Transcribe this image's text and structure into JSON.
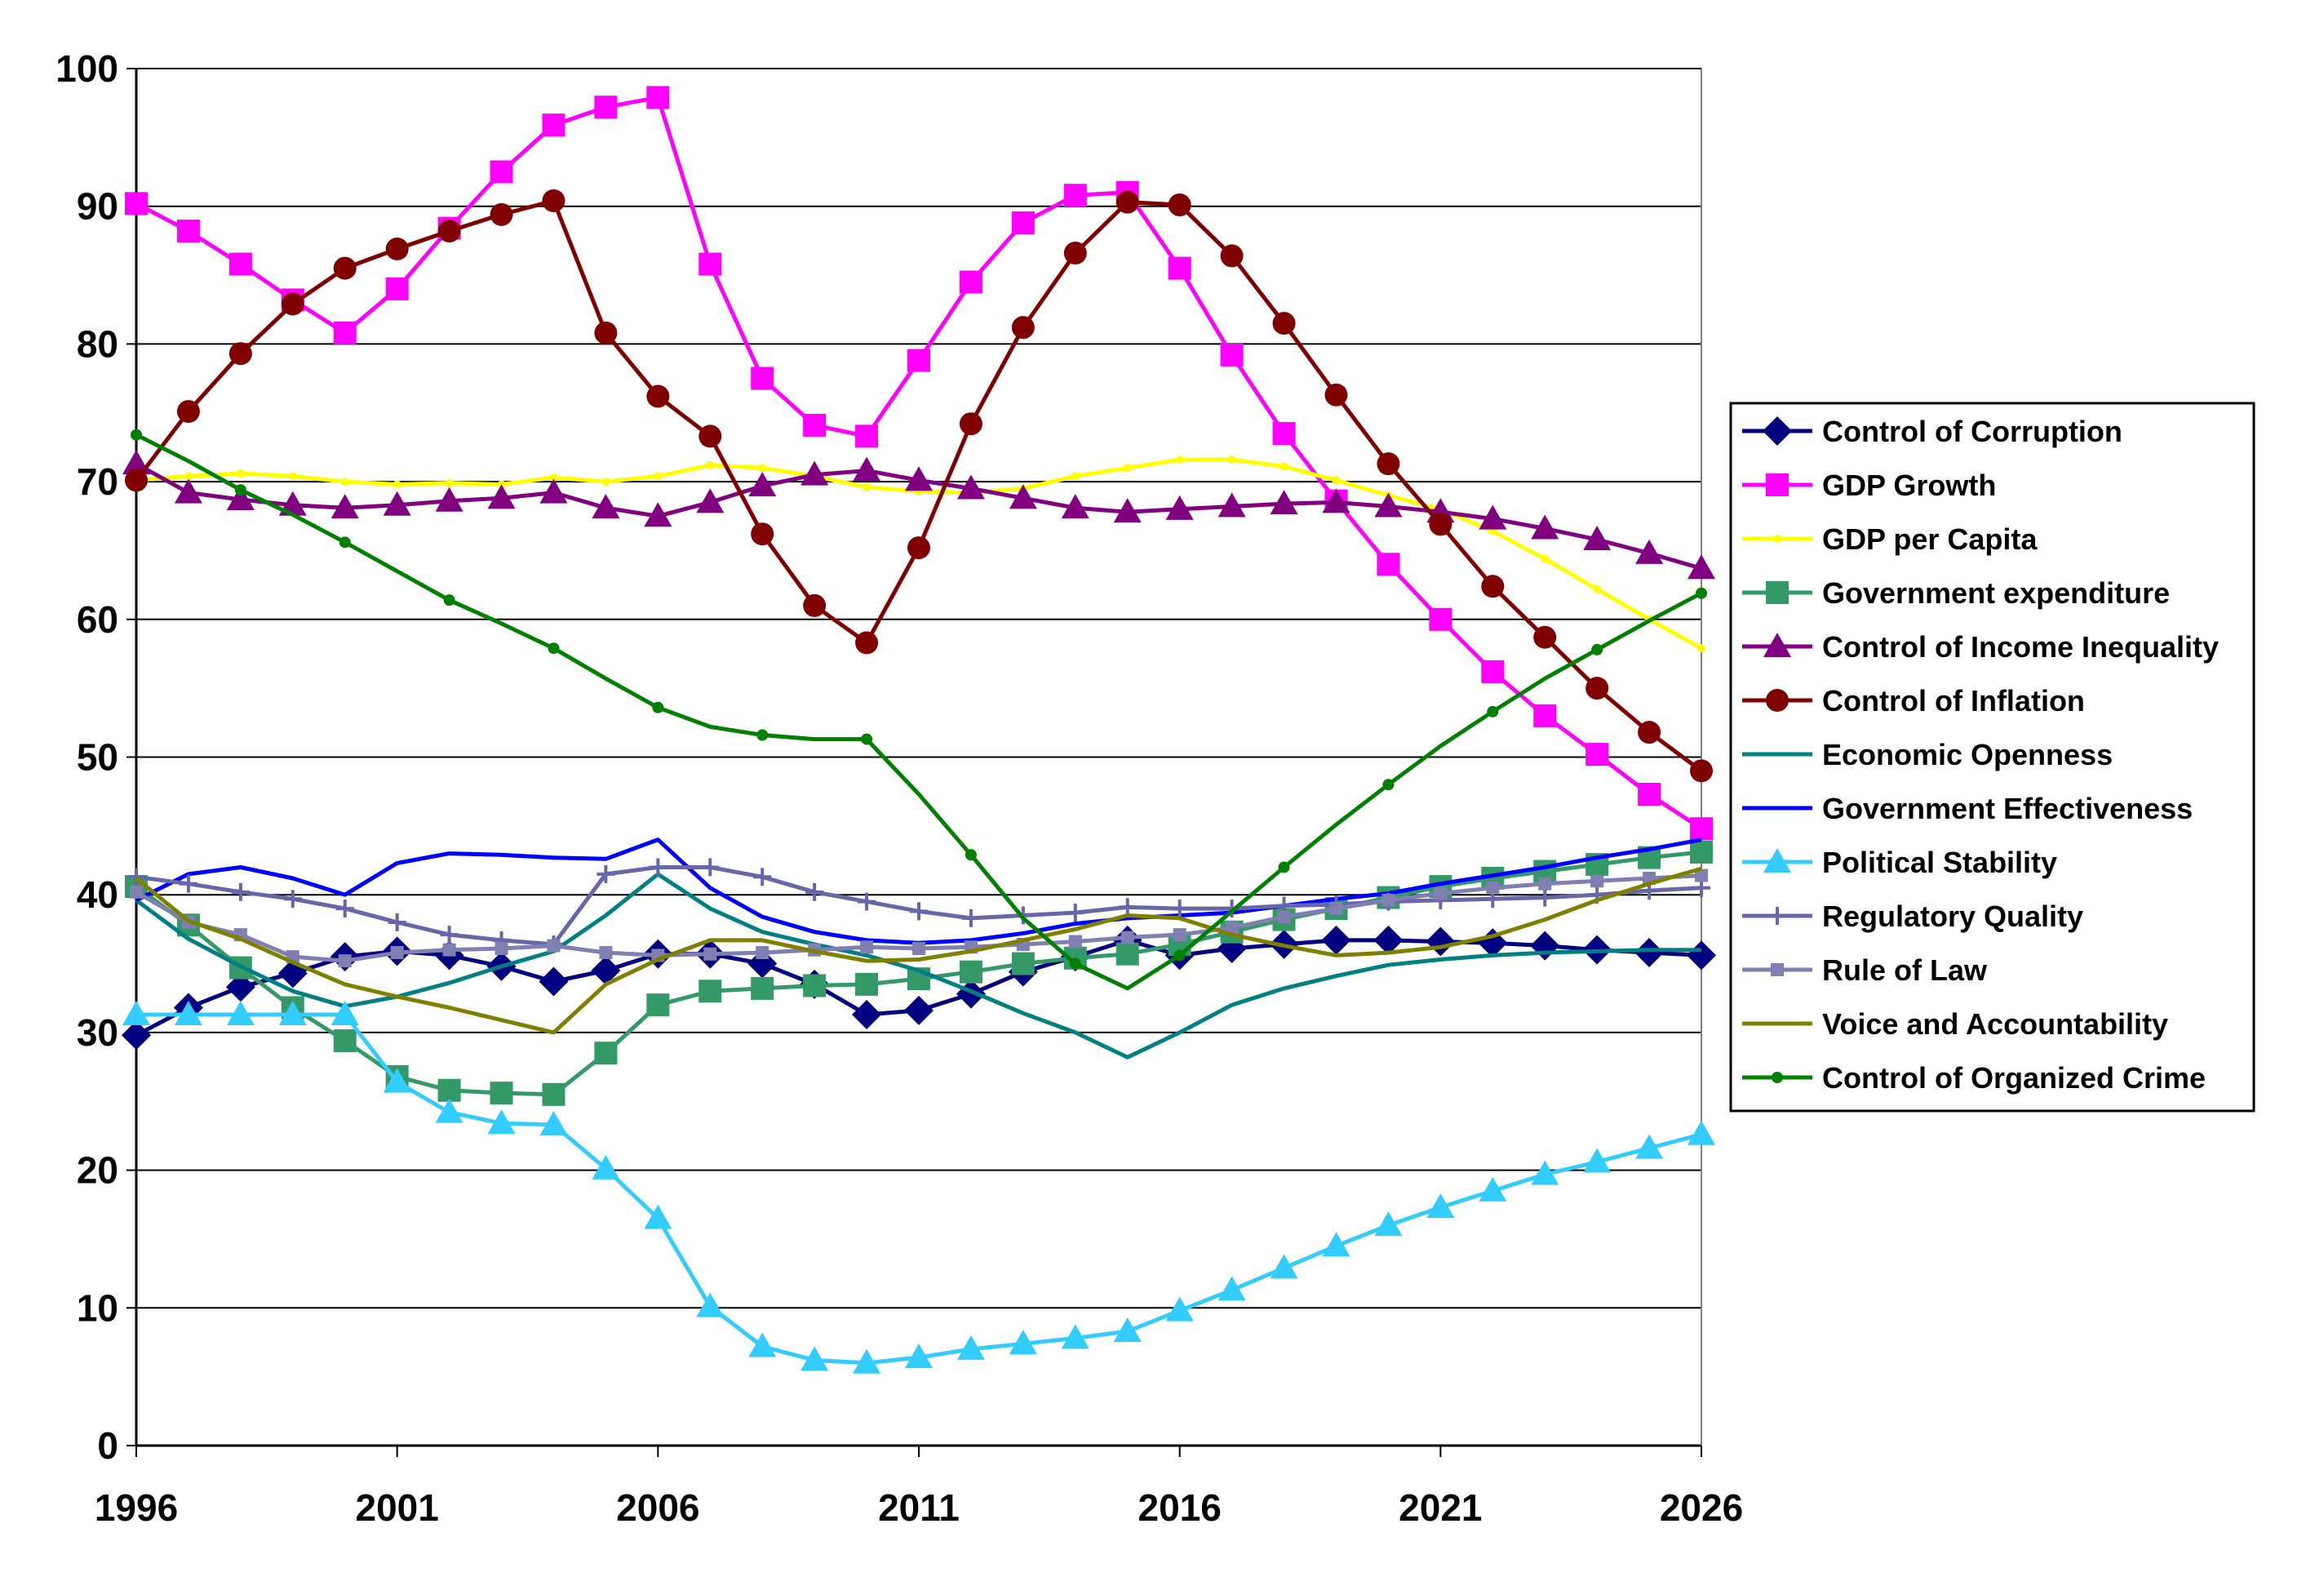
{
  "chart_data": {
    "type": "line",
    "title": "",
    "xlabel": "",
    "ylabel": "",
    "xlim": [
      1996,
      2026
    ],
    "ylim": [
      0,
      100
    ],
    "x_ticks": [
      1996,
      2001,
      2006,
      2011,
      2016,
      2021,
      2026
    ],
    "y_ticks": [
      0,
      10,
      20,
      30,
      40,
      50,
      60,
      70,
      80,
      90,
      100
    ],
    "grid": "horizontal",
    "legend_position": "right",
    "x": [
      1996,
      1997,
      1998,
      1999,
      2000,
      2001,
      2002,
      2003,
      2004,
      2005,
      2006,
      2007,
      2008,
      2009,
      2010,
      2011,
      2012,
      2013,
      2014,
      2015,
      2016,
      2017,
      2018,
      2019,
      2020,
      2021,
      2022,
      2023,
      2024,
      2025,
      2026
    ],
    "series": [
      {
        "name": "Control of Corruption",
        "color": "#000080",
        "marker": "diamond",
        "marker_every": 1,
        "values": [
          29.8,
          31.8,
          33.3,
          34.3,
          35.5,
          35.9,
          35.6,
          34.8,
          33.7,
          34.5,
          35.7,
          35.7,
          35.0,
          33.5,
          31.3,
          31.6,
          32.8,
          34.4,
          35.5,
          36.7,
          35.6,
          36.1,
          36.4,
          36.7,
          36.7,
          36.6,
          36.5,
          36.3,
          36.0,
          35.8,
          35.6
        ]
      },
      {
        "name": "GDP Growth",
        "color": "#FF00FF",
        "marker": "square",
        "marker_every": 1,
        "values": [
          90.2,
          88.2,
          85.8,
          83.2,
          80.8,
          84.0,
          88.4,
          92.5,
          95.9,
          97.2,
          97.9,
          85.8,
          77.5,
          74.1,
          73.3,
          78.8,
          84.5,
          88.8,
          90.8,
          91.0,
          85.5,
          79.2,
          73.5,
          68.6,
          64.0,
          60.0,
          56.2,
          53.0,
          50.2,
          47.3,
          44.8
        ]
      },
      {
        "name": "GDP per Capita",
        "color": "#FFFF00",
        "marker": "dot",
        "marker_every": 1,
        "values": [
          70.1,
          70.4,
          70.6,
          70.4,
          70.0,
          69.8,
          69.9,
          69.8,
          70.3,
          70.0,
          70.4,
          71.2,
          71.0,
          70.4,
          69.6,
          69.3,
          69.2,
          69.5,
          70.4,
          71.0,
          71.6,
          71.6,
          71.1,
          70.1,
          69.0,
          68.0,
          66.4,
          64.4,
          62.2,
          60.0,
          57.9
        ]
      },
      {
        "name": "Government expenditure",
        "color": "#339966",
        "marker": "square",
        "marker_every": 1,
        "values": [
          40.6,
          37.8,
          34.7,
          31.8,
          29.4,
          26.8,
          25.8,
          25.6,
          25.5,
          28.5,
          32.0,
          33.0,
          33.2,
          33.4,
          33.5,
          33.9,
          34.4,
          35.0,
          35.4,
          35.7,
          36.4,
          37.3,
          38.2,
          39.0,
          39.8,
          40.6,
          41.2,
          41.7,
          42.2,
          42.7,
          43.1
        ]
      },
      {
        "name": "Control of Income Inequality",
        "color": "#800080",
        "marker": "triangle",
        "marker_every": 1,
        "values": [
          71.3,
          69.2,
          68.7,
          68.3,
          68.1,
          68.3,
          68.6,
          68.8,
          69.2,
          68.1,
          67.5,
          68.5,
          69.7,
          70.5,
          70.8,
          70.1,
          69.5,
          68.8,
          68.1,
          67.8,
          68.0,
          68.2,
          68.4,
          68.5,
          68.2,
          67.8,
          67.3,
          66.6,
          65.8,
          64.8,
          63.7
        ]
      },
      {
        "name": "Control of Inflation",
        "color": "#800000",
        "marker": "dot-large",
        "marker_every": 1,
        "values": [
          70.1,
          75.1,
          79.3,
          82.9,
          85.5,
          86.9,
          88.2,
          89.4,
          90.4,
          80.8,
          76.2,
          73.3,
          66.2,
          61.0,
          58.3,
          65.2,
          74.2,
          81.2,
          86.6,
          90.3,
          90.1,
          86.4,
          81.5,
          76.3,
          71.3,
          66.9,
          62.4,
          58.7,
          55.0,
          51.8,
          49.0
        ]
      },
      {
        "name": "Economic Openness",
        "color": "#008080",
        "marker": "none",
        "marker_every": 1,
        "values": [
          39.6,
          36.8,
          34.8,
          33.0,
          31.9,
          32.6,
          33.6,
          34.8,
          35.9,
          38.5,
          41.5,
          39.0,
          37.3,
          36.4,
          35.6,
          34.5,
          33.0,
          31.4,
          30.0,
          28.2,
          30.0,
          32.0,
          33.2,
          34.1,
          34.9,
          35.3,
          35.6,
          35.8,
          35.9,
          36.0,
          36.0
        ]
      },
      {
        "name": "Government Effectiveness",
        "color": "#0000FF",
        "marker": "none",
        "marker_every": 1,
        "values": [
          39.6,
          41.5,
          42.0,
          41.2,
          40.0,
          42.3,
          43.0,
          42.9,
          42.7,
          42.6,
          44.0,
          40.5,
          38.4,
          37.3,
          36.7,
          36.5,
          36.7,
          37.2,
          37.9,
          38.3,
          38.5,
          38.7,
          39.2,
          39.7,
          40.1,
          40.8,
          41.4,
          42.0,
          42.7,
          43.3,
          44.0
        ]
      },
      {
        "name": "Political Stability",
        "color": "#33CCFF",
        "marker": "triangle",
        "marker_every": 1,
        "values": [
          31.3,
          31.3,
          31.3,
          31.3,
          31.3,
          26.4,
          24.2,
          23.4,
          23.3,
          20.1,
          16.5,
          10.1,
          7.2,
          6.2,
          6.0,
          6.4,
          7.0,
          7.4,
          7.8,
          8.3,
          9.8,
          11.3,
          12.9,
          14.5,
          16.0,
          17.3,
          18.5,
          19.7,
          20.6,
          21.6,
          22.6
        ]
      },
      {
        "name": "Regulatory Quality",
        "color": "#6666A8",
        "marker": "plus",
        "marker_every": 1,
        "values": [
          41.3,
          40.8,
          40.2,
          39.7,
          39.0,
          38.0,
          37.1,
          36.7,
          36.4,
          41.5,
          42.0,
          42.0,
          41.3,
          40.2,
          39.5,
          38.8,
          38.3,
          38.5,
          38.7,
          39.1,
          39.0,
          39.0,
          39.2,
          39.3,
          39.5,
          39.6,
          39.7,
          39.8,
          40.0,
          40.3,
          40.5
        ]
      },
      {
        "name": "Rule of Law",
        "color": "#7F7FB2",
        "marker": "square-small",
        "marker_every": 1,
        "values": [
          40.2,
          38.0,
          37.1,
          35.5,
          35.2,
          35.8,
          36.0,
          36.1,
          36.3,
          35.8,
          35.6,
          35.7,
          35.8,
          36.0,
          36.2,
          36.1,
          36.2,
          36.4,
          36.6,
          36.9,
          37.1,
          37.6,
          38.4,
          39.0,
          39.6,
          40.1,
          40.5,
          40.8,
          41.0,
          41.2,
          41.4
        ]
      },
      {
        "name": "Voice and Accountability",
        "color": "#808000",
        "marker": "none",
        "marker_every": 1,
        "values": [
          41.2,
          38.1,
          36.8,
          35.1,
          33.5,
          32.6,
          31.8,
          30.9,
          30.0,
          33.5,
          35.3,
          36.7,
          36.7,
          35.9,
          35.2,
          35.3,
          35.9,
          36.7,
          37.5,
          38.5,
          38.3,
          37.1,
          36.3,
          35.6,
          35.8,
          36.2,
          37.0,
          38.2,
          39.6,
          40.8,
          41.9
        ]
      },
      {
        "name": "Control of Organized Crime",
        "color": "#008000",
        "marker": "dot-small",
        "marker_every": 2,
        "values": [
          73.4,
          71.5,
          69.4,
          67.6,
          65.6,
          63.5,
          61.4,
          59.7,
          57.9,
          55.7,
          53.6,
          52.2,
          51.6,
          51.3,
          51.3,
          47.3,
          42.9,
          38.3,
          35.0,
          33.2,
          35.6,
          38.8,
          42.0,
          45.1,
          48.0,
          50.8,
          53.3,
          55.7,
          57.8,
          59.9,
          61.9
        ]
      }
    ]
  }
}
